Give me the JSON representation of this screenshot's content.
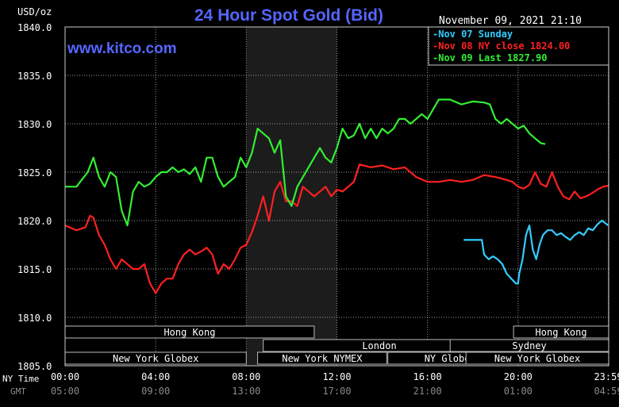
{
  "chart_data": {
    "type": "line",
    "title": "24 Hour Spot Gold (Bid)",
    "watermark": "www.kitco.com",
    "unit_label": "USD/oz",
    "timestamp": "November 09, 2021 21:10",
    "ylim": [
      1805,
      1840
    ],
    "y_ticks": [
      "1840.0",
      "1835.0",
      "1830.0",
      "1825.0",
      "1820.0",
      "1815.0",
      "1810.0",
      "1805.0"
    ],
    "y_tick_values": [
      1840,
      1835,
      1830,
      1825,
      1820,
      1815,
      1810,
      1805
    ],
    "xlim": [
      0,
      24
    ],
    "x_tick_hours": [
      0,
      4,
      8,
      12,
      16,
      20,
      23.983
    ],
    "ny_time_label": "NY Time",
    "gmt_label": "GMT",
    "ny_time_ticks": [
      "00:00",
      "04:00",
      "08:00",
      "12:00",
      "16:00",
      "20:00",
      "23:59"
    ],
    "gmt_ticks": [
      "05:00",
      "09:00",
      "13:00",
      "17:00",
      "21:00",
      "01:00",
      "04:59"
    ],
    "shaded_hours": [
      8,
      12
    ],
    "grid": true,
    "legend_position": "top-right",
    "legend": [
      {
        "label": "Nov 07 Sunday",
        "color": "#33ccff"
      },
      {
        "label": "Nov 08 NY close 1824.00",
        "color": "#ff2020"
      },
      {
        "label": "Nov 09 Last 1827.90",
        "color": "#33ee33"
      }
    ],
    "sessions": [
      {
        "label": "Hong Kong",
        "row": 0,
        "start": 0,
        "end": 11
      },
      {
        "label": "London",
        "row": 1,
        "start": 8.75,
        "end": 19
      },
      {
        "label": "New York Globex",
        "row": 2,
        "start": 0,
        "end": 8
      },
      {
        "label": "New York NYMEX",
        "row": 2,
        "start": 8.5,
        "end": 14.2
      },
      {
        "label": "NY Globex",
        "row": 2,
        "start": 14.25,
        "end": 19.75
      },
      {
        "label": "Hong Kong",
        "row": 0,
        "start": 19.8,
        "end": 24
      },
      {
        "label": "Sydney",
        "row": 1,
        "start": 17,
        "end": 24
      },
      {
        "label": "New York Globex",
        "row": 2,
        "start": 17.7,
        "end": 24
      }
    ],
    "series": [
      {
        "name": "Nov 07 Sunday",
        "color": "#33ccff",
        "x": [
          17.6,
          18.4,
          18.5,
          18.7,
          18.9,
          19.1,
          19.3,
          19.5,
          19.7,
          19.9,
          20.0,
          20.05,
          20.2,
          20.35,
          20.5,
          20.65,
          20.8,
          20.95,
          21.1,
          21.3,
          21.5,
          21.7,
          21.9,
          22.1,
          22.3,
          22.5,
          22.7,
          22.9,
          23.1,
          23.3,
          23.5,
          23.7,
          23.983
        ],
        "values": [
          1818.0,
          1818.0,
          1816.5,
          1816.0,
          1816.3,
          1816.0,
          1815.5,
          1814.5,
          1814.0,
          1813.5,
          1813.5,
          1814.5,
          1816.0,
          1818.5,
          1819.5,
          1817.0,
          1816.0,
          1817.5,
          1818.5,
          1819.0,
          1819.0,
          1818.5,
          1818.7,
          1818.3,
          1818.0,
          1818.5,
          1818.8,
          1818.5,
          1819.2,
          1819.0,
          1819.6,
          1820.0,
          1819.5
        ]
      },
      {
        "name": "Nov 08 NY close 1824.00",
        "color": "#ff2020",
        "x": [
          0,
          0.5,
          0.9,
          1.1,
          1.25,
          1.5,
          1.75,
          2.0,
          2.25,
          2.5,
          2.75,
          3.0,
          3.25,
          3.5,
          3.75,
          4.0,
          4.25,
          4.5,
          4.75,
          5.0,
          5.25,
          5.5,
          5.75,
          6.0,
          6.25,
          6.5,
          6.75,
          7.0,
          7.25,
          7.5,
          7.75,
          8.0,
          8.25,
          8.5,
          8.75,
          9.0,
          9.25,
          9.5,
          9.75,
          10.0,
          10.25,
          10.5,
          10.75,
          11.0,
          11.25,
          11.5,
          11.75,
          12.0,
          12.25,
          12.5,
          12.75,
          13.0,
          13.5,
          14.0,
          14.5,
          15.0,
          15.5,
          16.0,
          16.5,
          17.0,
          17.5,
          18.0,
          18.5,
          19.0,
          19.5,
          19.75,
          20.0,
          20.25,
          20.5,
          20.75,
          21.0,
          21.25,
          21.5,
          21.75,
          22.0,
          22.25,
          22.5,
          22.75,
          23.0,
          23.25,
          23.5,
          23.75,
          23.983
        ],
        "values": [
          1819.5,
          1819.0,
          1819.3,
          1820.5,
          1820.3,
          1818.5,
          1817.5,
          1816.0,
          1815.0,
          1816.0,
          1815.5,
          1815.0,
          1815.0,
          1815.5,
          1813.5,
          1812.5,
          1813.5,
          1814.0,
          1814.0,
          1815.5,
          1816.5,
          1817.0,
          1816.5,
          1816.8,
          1817.2,
          1816.5,
          1814.5,
          1815.5,
          1815.0,
          1816.0,
          1817.2,
          1817.5,
          1818.8,
          1820.5,
          1822.5,
          1820.0,
          1823.0,
          1824.0,
          1822.0,
          1822.0,
          1821.5,
          1823.5,
          1823.0,
          1822.5,
          1823.0,
          1823.5,
          1822.5,
          1823.2,
          1823.0,
          1823.5,
          1824.0,
          1825.8,
          1825.5,
          1825.7,
          1825.3,
          1825.5,
          1824.5,
          1824.0,
          1824.0,
          1824.2,
          1824.0,
          1824.2,
          1824.7,
          1824.5,
          1824.2,
          1824.0,
          1823.5,
          1823.3,
          1823.7,
          1825.0,
          1823.8,
          1823.5,
          1825.0,
          1823.5,
          1822.5,
          1822.2,
          1823.0,
          1822.3,
          1822.5,
          1822.8,
          1823.2,
          1823.5,
          1823.6
        ]
      },
      {
        "name": "Nov 09 Last 1827.90",
        "color": "#33ee33",
        "x": [
          0,
          0.5,
          1.0,
          1.25,
          1.5,
          1.75,
          2.0,
          2.25,
          2.5,
          2.75,
          3.0,
          3.25,
          3.5,
          3.75,
          4.0,
          4.25,
          4.5,
          4.75,
          5.0,
          5.25,
          5.5,
          5.75,
          6.0,
          6.25,
          6.5,
          6.75,
          7.0,
          7.25,
          7.5,
          7.75,
          8.0,
          8.25,
          8.5,
          8.75,
          9.0,
          9.25,
          9.5,
          9.75,
          10.0,
          10.25,
          10.5,
          10.75,
          11.0,
          11.25,
          11.5,
          11.75,
          12.0,
          12.25,
          12.5,
          12.75,
          13.0,
          13.25,
          13.5,
          13.75,
          14.0,
          14.25,
          14.5,
          14.75,
          15.0,
          15.25,
          15.5,
          15.75,
          16.0,
          16.5,
          17.0,
          17.5,
          18.0,
          18.5,
          18.75,
          19.0,
          19.25,
          19.5,
          19.75,
          20.0,
          20.25,
          20.5,
          20.75,
          21.0,
          21.2
        ],
        "values": [
          1823.5,
          1823.5,
          1825.0,
          1826.5,
          1824.5,
          1823.5,
          1825.0,
          1824.5,
          1821.0,
          1819.5,
          1823.0,
          1824.0,
          1823.5,
          1823.8,
          1824.5,
          1825.0,
          1825.0,
          1825.5,
          1825.0,
          1825.3,
          1824.8,
          1825.5,
          1824.0,
          1826.5,
          1826.5,
          1824.5,
          1823.5,
          1824.0,
          1824.5,
          1826.5,
          1825.5,
          1827.0,
          1829.5,
          1829.0,
          1828.5,
          1827.0,
          1828.3,
          1822.5,
          1821.5,
          1823.5,
          1824.5,
          1825.5,
          1826.5,
          1827.5,
          1826.5,
          1826.0,
          1827.5,
          1829.5,
          1828.5,
          1828.8,
          1830.0,
          1828.5,
          1829.5,
          1828.5,
          1829.5,
          1829.0,
          1829.5,
          1830.5,
          1830.5,
          1830.0,
          1830.5,
          1831.0,
          1830.5,
          1832.5,
          1832.5,
          1832.0,
          1832.3,
          1832.2,
          1832.0,
          1830.5,
          1830.0,
          1830.5,
          1830.0,
          1829.5,
          1829.8,
          1829.0,
          1828.5,
          1828.0,
          1827.9
        ]
      }
    ]
  }
}
